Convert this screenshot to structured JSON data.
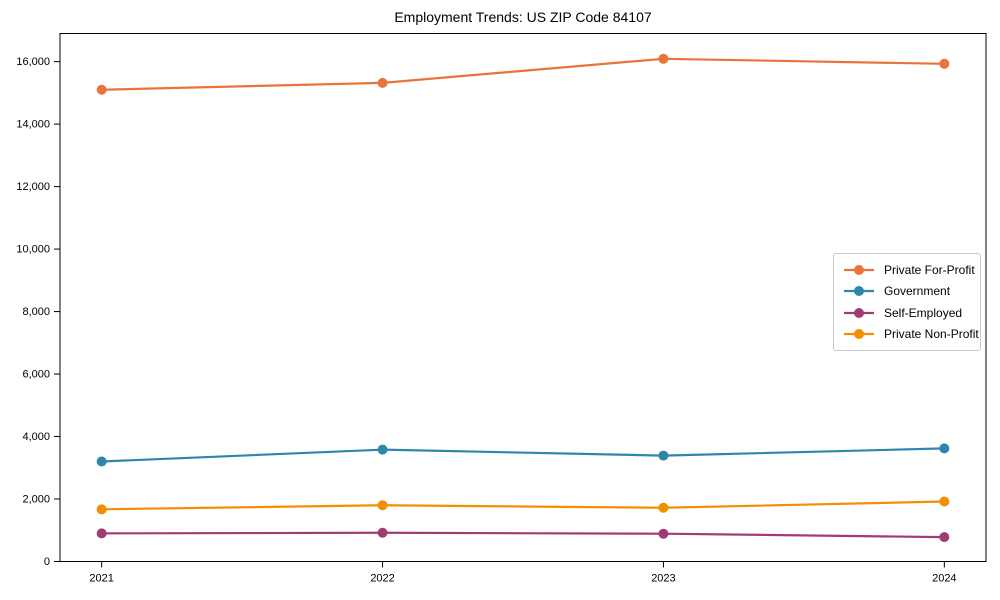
{
  "chart_data": {
    "type": "line",
    "title": "Employment Trends: US ZIP Code 84107",
    "x": [
      "2021",
      "2022",
      "2023",
      "2024"
    ],
    "series": [
      {
        "name": "Private For-Profit",
        "color": "#E8743B",
        "values": [
          15100,
          15320,
          16090,
          15930
        ]
      },
      {
        "name": "Government",
        "color": "#2E86AB",
        "values": [
          3200,
          3580,
          3390,
          3620
        ]
      },
      {
        "name": "Self-Employed",
        "color": "#A23B72",
        "values": [
          900,
          920,
          890,
          780
        ]
      },
      {
        "name": "Private Non-Profit",
        "color": "#F18F01",
        "values": [
          1670,
          1800,
          1720,
          1920
        ]
      }
    ],
    "xlabel": "",
    "ylabel": "",
    "ylim": [
      0,
      16900
    ],
    "yticks": [
      0,
      2000,
      4000,
      6000,
      8000,
      10000,
      12000,
      14000,
      16000
    ],
    "ytick_labels": [
      "0",
      "2,000",
      "4,000",
      "6,000",
      "8,000",
      "10,000",
      "12,000",
      "14,000",
      "16,000"
    ],
    "grid": false,
    "legend_position": "center-right",
    "marker": "circle",
    "axis_color": "#000000",
    "background_color": "#ffffff"
  }
}
